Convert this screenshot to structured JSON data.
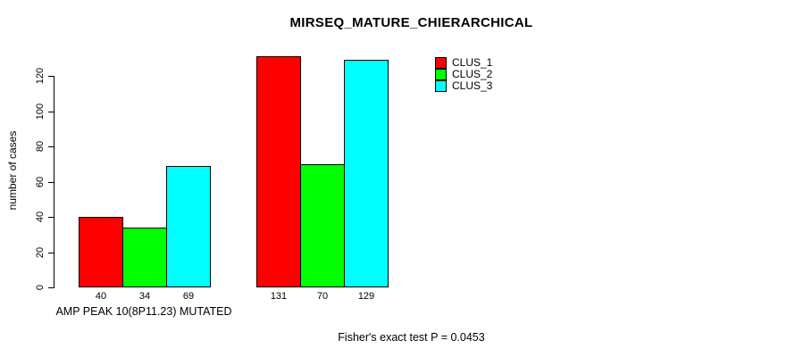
{
  "chart_data": {
    "type": "bar",
    "title": "MIRSEQ_MATURE_CHIERARCHICAL",
    "ylabel": "number of cases",
    "xlabel": "",
    "ylim": [
      0,
      120
    ],
    "yticks": [
      0,
      20,
      40,
      60,
      80,
      100,
      120
    ],
    "grid": false,
    "legend_position": "top-right",
    "background": "#ffffff",
    "text_color": "#000000",
    "bar_border_color": "#000000",
    "categories": [
      "AMP PEAK 10(8P11.23) MUTATED",
      ""
    ],
    "series": [
      {
        "name": "CLUS_1",
        "color": "#ff0000",
        "values": [
          40,
          131
        ]
      },
      {
        "name": "CLUS_2",
        "color": "#00ff00",
        "values": [
          34,
          70
        ]
      },
      {
        "name": "CLUS_3",
        "color": "#00ffff",
        "values": [
          69,
          129
        ]
      }
    ],
    "value_labels_shown": true,
    "footer": "Fisher's exact test P = 0.0453"
  }
}
